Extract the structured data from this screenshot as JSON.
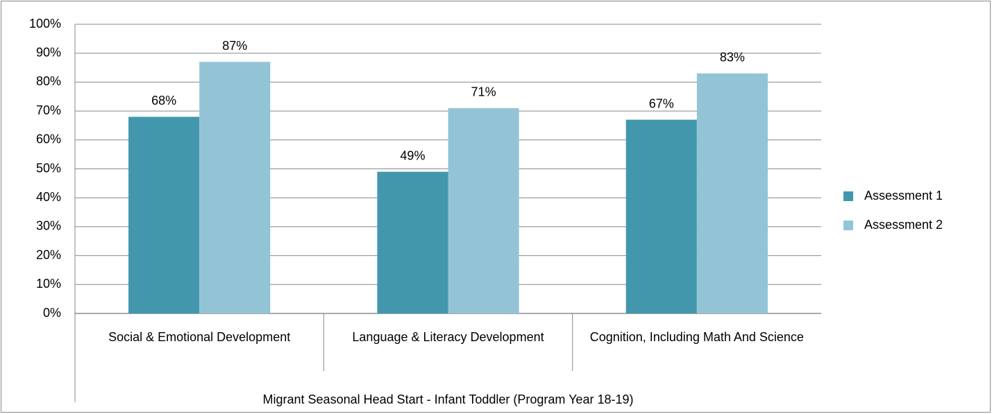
{
  "chart_data": {
    "type": "bar",
    "categories": [
      "Social & Emotional Development",
      "Language & Literacy Development",
      "Cognition, Including Math And Science"
    ],
    "category_group": "Migrant Seasonal Head Start - Infant Toddler (Program Year 18-19)",
    "series": [
      {
        "name": "Assessment 1",
        "color": "#4397ad",
        "values": [
          68,
          49,
          67
        ],
        "value_labels": [
          "68%",
          "49%",
          "67%"
        ]
      },
      {
        "name": "Assessment 2",
        "color": "#93c4d6",
        "values": [
          87,
          71,
          83
        ],
        "value_labels": [
          "87%",
          "71%",
          "83%"
        ]
      }
    ],
    "ylim": [
      0,
      100
    ],
    "yticks": [
      {
        "value": 0,
        "label": "0%"
      },
      {
        "value": 10,
        "label": "10%"
      },
      {
        "value": 20,
        "label": "20%"
      },
      {
        "value": 30,
        "label": "30%"
      },
      {
        "value": 40,
        "label": "40%"
      },
      {
        "value": 50,
        "label": "50%"
      },
      {
        "value": 60,
        "label": "60%"
      },
      {
        "value": 70,
        "label": "70%"
      },
      {
        "value": 80,
        "label": "80%"
      },
      {
        "value": 90,
        "label": "90%"
      },
      {
        "value": 100,
        "label": "100%"
      }
    ],
    "grid": true,
    "legend": "right"
  }
}
